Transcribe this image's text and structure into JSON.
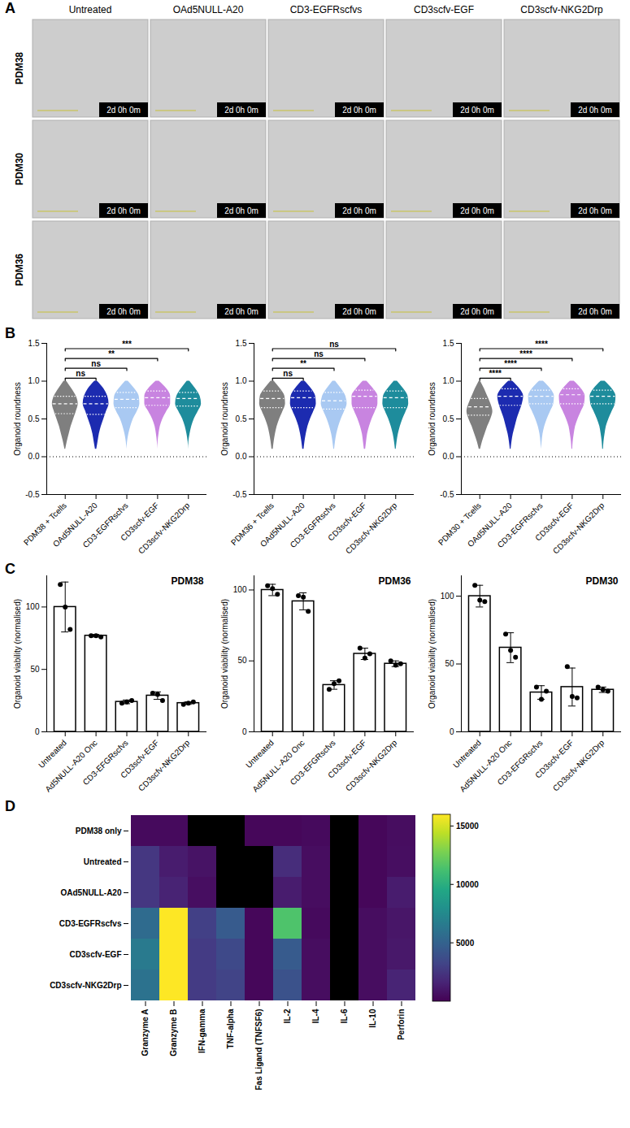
{
  "image_grid": {
    "panel": "A",
    "columns": [
      "Untreated",
      "OAd5NULL-A20",
      "CD3-EGFRscfvs",
      "CD3scfv-EGF",
      "CD3scfv-NKG2Drp"
    ],
    "rows": [
      "PDM38",
      "PDM30",
      "PDM36"
    ],
    "timestamp": "2d 0h 0m"
  },
  "chart_data": [
    {
      "type": "violin",
      "panel": "B",
      "categories": [
        "PDM38 + Tcells",
        "OAd5NULL-A20",
        "CD3-EGFRscfvs",
        "CD3scfv-EGF",
        "CD3scfv-NKG2Drp"
      ],
      "colors": [
        "#7f7f7f",
        "#1c2bb0",
        "#a9c9f2",
        "#c884e0",
        "#1e8c9c"
      ],
      "ylabel": "Organoid roundness",
      "ylim": [
        -0.5,
        1.5
      ],
      "yticks": [
        -0.5,
        {
          "value": 0,
          "label": "0.0"
        },
        0.5,
        {
          "value": 1,
          "label": "1.0"
        },
        1.5
      ],
      "reference_line": 0,
      "density_y": [
        0.1,
        0.2,
        0.3,
        0.4,
        0.5,
        0.6,
        0.7,
        0.8,
        0.9,
        1.0
      ],
      "violins": [
        {
          "density": [
            0.03,
            0.15,
            0.3,
            0.45,
            0.65,
            0.85,
            1,
            0.85,
            0.5,
            0.1
          ],
          "median": 0.7,
          "q1": 0.57,
          "q3": 0.8
        },
        {
          "density": [
            0.05,
            0.15,
            0.25,
            0.4,
            0.6,
            0.8,
            1,
            0.9,
            0.6,
            0.1
          ],
          "median": 0.7,
          "q1": 0.56,
          "q3": 0.8
        },
        {
          "density": [
            0,
            0.05,
            0.15,
            0.3,
            0.5,
            0.8,
            1,
            0.95,
            0.6,
            0.1
          ],
          "median": 0.76,
          "q1": 0.65,
          "q3": 0.85
        },
        {
          "density": [
            0,
            0.03,
            0.1,
            0.2,
            0.4,
            0.7,
            1,
            1,
            0.7,
            0.12
          ],
          "median": 0.78,
          "q1": 0.68,
          "q3": 0.87
        },
        {
          "density": [
            0,
            0.03,
            0.12,
            0.25,
            0.45,
            0.75,
            1,
            0.9,
            0.55,
            0.1
          ],
          "median": 0.77,
          "q1": 0.67,
          "q3": 0.85
        }
      ],
      "comparisons": [
        {
          "groups": [
            "PDM38 + Tcells",
            "OAd5NULL-A20"
          ],
          "label": "ns"
        },
        {
          "groups": [
            "PDM38 + Tcells",
            "CD3-EGFRscfvs"
          ],
          "label": "ns"
        },
        {
          "groups": [
            "PDM38 + Tcells",
            "CD3scfv-EGF"
          ],
          "label": "**"
        },
        {
          "groups": [
            "PDM38 + Tcells",
            "CD3scfv-NKG2Drp"
          ],
          "label": "***"
        }
      ]
    },
    {
      "type": "violin",
      "categories": [
        "PDM36 + Tcells",
        "OAd5NULL-A20",
        "CD3-EGFRscfvs",
        "CD3scfv-EGF",
        "CD3scfv-NKG2Drp"
      ],
      "colors": [
        "#7f7f7f",
        "#1c2bb0",
        "#a9c9f2",
        "#c884e0",
        "#1e8c9c"
      ],
      "ylabel": "Organoid roundness",
      "ylim": [
        -0.5,
        1.5
      ],
      "yticks": [
        -0.5,
        {
          "value": 0,
          "label": "0.0"
        },
        0.5,
        {
          "value": 1,
          "label": "1.0"
        },
        1.5
      ],
      "reference_line": 0,
      "density_y": [
        0.1,
        0.2,
        0.3,
        0.4,
        0.5,
        0.6,
        0.7,
        0.8,
        0.9,
        1.0
      ],
      "violins": [
        {
          "density": [
            0.05,
            0.12,
            0.22,
            0.35,
            0.55,
            0.8,
            1,
            0.95,
            0.6,
            0.12
          ],
          "median": 0.77,
          "q1": 0.65,
          "q3": 0.87
        },
        {
          "density": [
            0.05,
            0.12,
            0.22,
            0.35,
            0.55,
            0.8,
            1,
            0.95,
            0.62,
            0.12
          ],
          "median": 0.78,
          "q1": 0.65,
          "q3": 0.87
        },
        {
          "density": [
            0.03,
            0.1,
            0.2,
            0.35,
            0.55,
            0.8,
            1,
            0.9,
            0.55,
            0.1
          ],
          "median": 0.74,
          "q1": 0.63,
          "q3": 0.85
        },
        {
          "density": [
            0.05,
            0.12,
            0.2,
            0.35,
            0.55,
            0.8,
            1,
            1,
            0.65,
            0.14
          ],
          "median": 0.8,
          "q1": 0.65,
          "q3": 0.88
        },
        {
          "density": [
            0.03,
            0.1,
            0.2,
            0.35,
            0.55,
            0.8,
            1,
            0.95,
            0.6,
            0.12
          ],
          "median": 0.78,
          "q1": 0.65,
          "q3": 0.87
        }
      ],
      "comparisons": [
        {
          "groups": [
            "PDM36 + Tcells",
            "OAd5NULL-A20"
          ],
          "label": "ns"
        },
        {
          "groups": [
            "PDM36 + Tcells",
            "CD3-EGFRscfvs"
          ],
          "label": "**"
        },
        {
          "groups": [
            "PDM36 + Tcells",
            "CD3scfv-EGF"
          ],
          "label": "ns"
        },
        {
          "groups": [
            "PDM36 + Tcells",
            "CD3scfv-NKG2Drp"
          ],
          "label": "ns"
        }
      ]
    },
    {
      "type": "violin",
      "categories": [
        "PDM30 + Tcells",
        "OAd5NULL-A20",
        "CD3-EGFRscfvs",
        "CD3scfv-EGF",
        "CD3scfv-NKG2Drp"
      ],
      "colors": [
        "#7f7f7f",
        "#1c2bb0",
        "#a9c9f2",
        "#c884e0",
        "#1e8c9c"
      ],
      "ylabel": "Organoid roundness",
      "ylim": [
        -0.5,
        1.5
      ],
      "yticks": [
        -0.5,
        {
          "value": 0,
          "label": "0.0"
        },
        0.5,
        {
          "value": 1,
          "label": "1.0"
        },
        1.5
      ],
      "reference_line": 0,
      "density_y": [
        0.1,
        0.2,
        0.3,
        0.4,
        0.5,
        0.6,
        0.7,
        0.8,
        0.9,
        1.0
      ],
      "violins": [
        {
          "density": [
            0.05,
            0.2,
            0.4,
            0.6,
            0.85,
            1,
            0.85,
            0.6,
            0.35,
            0.05
          ],
          "median": 0.66,
          "q1": 0.55,
          "q3": 0.77
        },
        {
          "density": [
            0.03,
            0.1,
            0.2,
            0.35,
            0.5,
            0.7,
            0.9,
            1,
            0.7,
            0.15
          ],
          "median": 0.8,
          "q1": 0.68,
          "q3": 0.9
        },
        {
          "density": [
            0,
            0.05,
            0.12,
            0.25,
            0.45,
            0.7,
            0.95,
            1,
            0.7,
            0.15
          ],
          "median": 0.8,
          "q1": 0.7,
          "q3": 0.88
        },
        {
          "density": [
            0.03,
            0.07,
            0.15,
            0.25,
            0.45,
            0.7,
            0.95,
            1,
            0.7,
            0.15
          ],
          "median": 0.82,
          "q1": 0.7,
          "q3": 0.9
        },
        {
          "density": [
            0.03,
            0.07,
            0.15,
            0.25,
            0.45,
            0.7,
            0.95,
            1,
            0.7,
            0.15
          ],
          "median": 0.8,
          "q1": 0.7,
          "q3": 0.88
        }
      ],
      "comparisons": [
        {
          "groups": [
            "PDM30 + Tcells",
            "OAd5NULL-A20"
          ],
          "label": "****"
        },
        {
          "groups": [
            "PDM30 + Tcells",
            "CD3-EGFRscfvs"
          ],
          "label": "****"
        },
        {
          "groups": [
            "PDM30 + Tcells",
            "CD3scfv-EGF"
          ],
          "label": "****"
        },
        {
          "groups": [
            "PDM30 + Tcells",
            "CD3scfv-NKG2Drp"
          ],
          "label": "****"
        }
      ]
    },
    {
      "type": "bar",
      "panel": "C",
      "title": "PDM38",
      "categories": [
        "Untreated",
        "Ad5NULL-A20 Onc",
        "CD3-EFGRscfvs",
        "CD3scfv-EGF",
        "CD3scfv-NKG2Drp"
      ],
      "values": [
        100,
        77,
        24,
        29,
        23
      ],
      "errors": [
        20,
        1,
        1.5,
        3,
        1
      ],
      "points": [
        [
          118,
          100,
          82
        ],
        [
          77,
          77,
          76
        ],
        [
          23,
          24,
          25
        ],
        [
          31,
          30,
          25
        ],
        [
          22,
          23,
          24
        ]
      ],
      "color": "#ffffff",
      "ylabel": "Organoid viability (normalised)",
      "ylim": [
        0,
        125
      ],
      "yticks": [
        0,
        50,
        100
      ]
    },
    {
      "type": "bar",
      "title": "PDM36",
      "categories": [
        "Untreated",
        "Ad5NULL-A20 Onc",
        "CD3-EFGRscfvs",
        "CD3scfv-EGF",
        "CD3scfv-NKG2Drp"
      ],
      "values": [
        100,
        92,
        33,
        55,
        48
      ],
      "errors": [
        4,
        6,
        3,
        4,
        2
      ],
      "points": [
        [
          103,
          101,
          97
        ],
        [
          96,
          95,
          85
        ],
        [
          30,
          34,
          36
        ],
        [
          59,
          52,
          55
        ],
        [
          50,
          47,
          48
        ]
      ],
      "color": "#ffffff",
      "ylabel": "Organoid viability (normalised)",
      "ylim": [
        0,
        110
      ],
      "yticks": [
        0,
        50,
        100
      ]
    },
    {
      "type": "bar",
      "title": "PDM30",
      "categories": [
        "Untreated",
        "Ad5NULL-A20 Onc",
        "CD3-EFGRscfvs",
        "CD3scfv-EGF",
        "CD3scfv-NKG2Drp"
      ],
      "values": [
        100,
        62,
        29,
        33,
        31
      ],
      "errors": [
        8,
        11,
        5,
        14,
        2
      ],
      "points": [
        [
          108,
          97,
          96
        ],
        [
          72,
          60,
          55
        ],
        [
          33,
          24,
          30
        ],
        [
          48,
          26,
          25
        ],
        [
          33,
          31,
          30
        ]
      ],
      "color": "#ffffff",
      "ylabel": "Organoid viability (normalised)",
      "ylim": [
        0,
        115
      ],
      "yticks": [
        0,
        50,
        100
      ]
    },
    {
      "type": "heatmap",
      "panel": "D",
      "rows": [
        "PDM38 only",
        "Untreated",
        "OAd5NULL-A20",
        "CD3-EGFRscfvs",
        "CD3scfv-EGF",
        "CD3scfv-NKG2Drp"
      ],
      "columns": [
        "Granzyme A",
        "Granzyme B",
        "IFN-gamma",
        "TNF-alpha",
        "Fas Ligand (TNFSF6)",
        "IL-2",
        "IL-4",
        "IL-6",
        "IL-10",
        "Perforin"
      ],
      "cells": [
        [
          400,
          400,
          null,
          null,
          300,
          300,
          400,
          null,
          300,
          500
        ],
        [
          2500,
          1200,
          800,
          null,
          null,
          2000,
          500,
          null,
          300,
          600
        ],
        [
          2500,
          1500,
          600,
          null,
          null,
          1200,
          500,
          null,
          300,
          1200
        ],
        [
          5500,
          16000,
          3000,
          4500,
          300,
          11500,
          400,
          null,
          500,
          900
        ],
        [
          6500,
          16000,
          2800,
          3500,
          300,
          4500,
          500,
          null,
          500,
          1000
        ],
        [
          6000,
          16000,
          2800,
          3200,
          300,
          4000,
          500,
          null,
          500,
          1600
        ]
      ],
      "color_range": [
        0,
        16000
      ],
      "color_ticks": [
        5000,
        10000,
        15000
      ]
    }
  ]
}
